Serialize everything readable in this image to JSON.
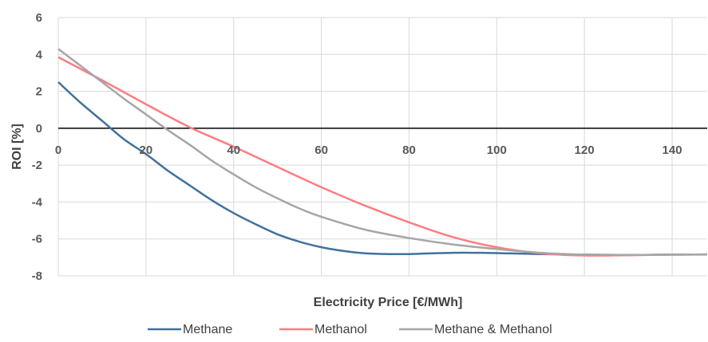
{
  "chart_data": {
    "type": "line",
    "xlabel": "Electricity Price [€/MWh]",
    "ylabel": "ROI [%]",
    "xlim": [
      0,
      148
    ],
    "ylim": [
      -8,
      6
    ],
    "x_ticks": [
      0,
      20,
      40,
      60,
      80,
      100,
      120,
      140
    ],
    "y_ticks": [
      6,
      4,
      2,
      0,
      -2,
      -4,
      -6,
      -8
    ],
    "grid": true,
    "legend_position": "bottom",
    "series": [
      {
        "name": "Methane",
        "color": "#41719c",
        "x": [
          0,
          5,
          10,
          15,
          20,
          25,
          30,
          35,
          40,
          45,
          50,
          55,
          60,
          65,
          70,
          75,
          80,
          85,
          90,
          95,
          100,
          110,
          120,
          130,
          140,
          148
        ],
        "y": [
          2.5,
          1.4,
          0.4,
          -0.6,
          -1.4,
          -2.3,
          -3.1,
          -3.9,
          -4.6,
          -5.2,
          -5.75,
          -6.15,
          -6.45,
          -6.65,
          -6.78,
          -6.82,
          -6.82,
          -6.78,
          -6.75,
          -6.75,
          -6.77,
          -6.82,
          -6.85,
          -6.87,
          -6.85,
          -6.84
        ]
      },
      {
        "name": "Methanol",
        "color": "#ff7c80",
        "x": [
          0,
          10,
          20,
          30,
          40,
          50,
          60,
          70,
          80,
          90,
          100,
          110,
          120,
          130,
          140,
          148
        ],
        "y": [
          3.85,
          2.6,
          1.3,
          0.05,
          -1.0,
          -2.1,
          -3.2,
          -4.2,
          -5.1,
          -5.9,
          -6.45,
          -6.78,
          -6.9,
          -6.88,
          -6.85,
          -6.85
        ]
      },
      {
        "name": "Methane & Methanol",
        "color": "#a6a6a6",
        "x": [
          0,
          5,
          10,
          15,
          20,
          25,
          30,
          35,
          40,
          45,
          50,
          55,
          60,
          70,
          80,
          90,
          100,
          110,
          120,
          130,
          140,
          148
        ],
        "y": [
          4.3,
          3.4,
          2.5,
          1.6,
          0.75,
          -0.1,
          -0.9,
          -1.75,
          -2.5,
          -3.2,
          -3.8,
          -4.35,
          -4.8,
          -5.5,
          -5.95,
          -6.3,
          -6.55,
          -6.75,
          -6.85,
          -6.87,
          -6.85,
          -6.84
        ]
      }
    ]
  }
}
